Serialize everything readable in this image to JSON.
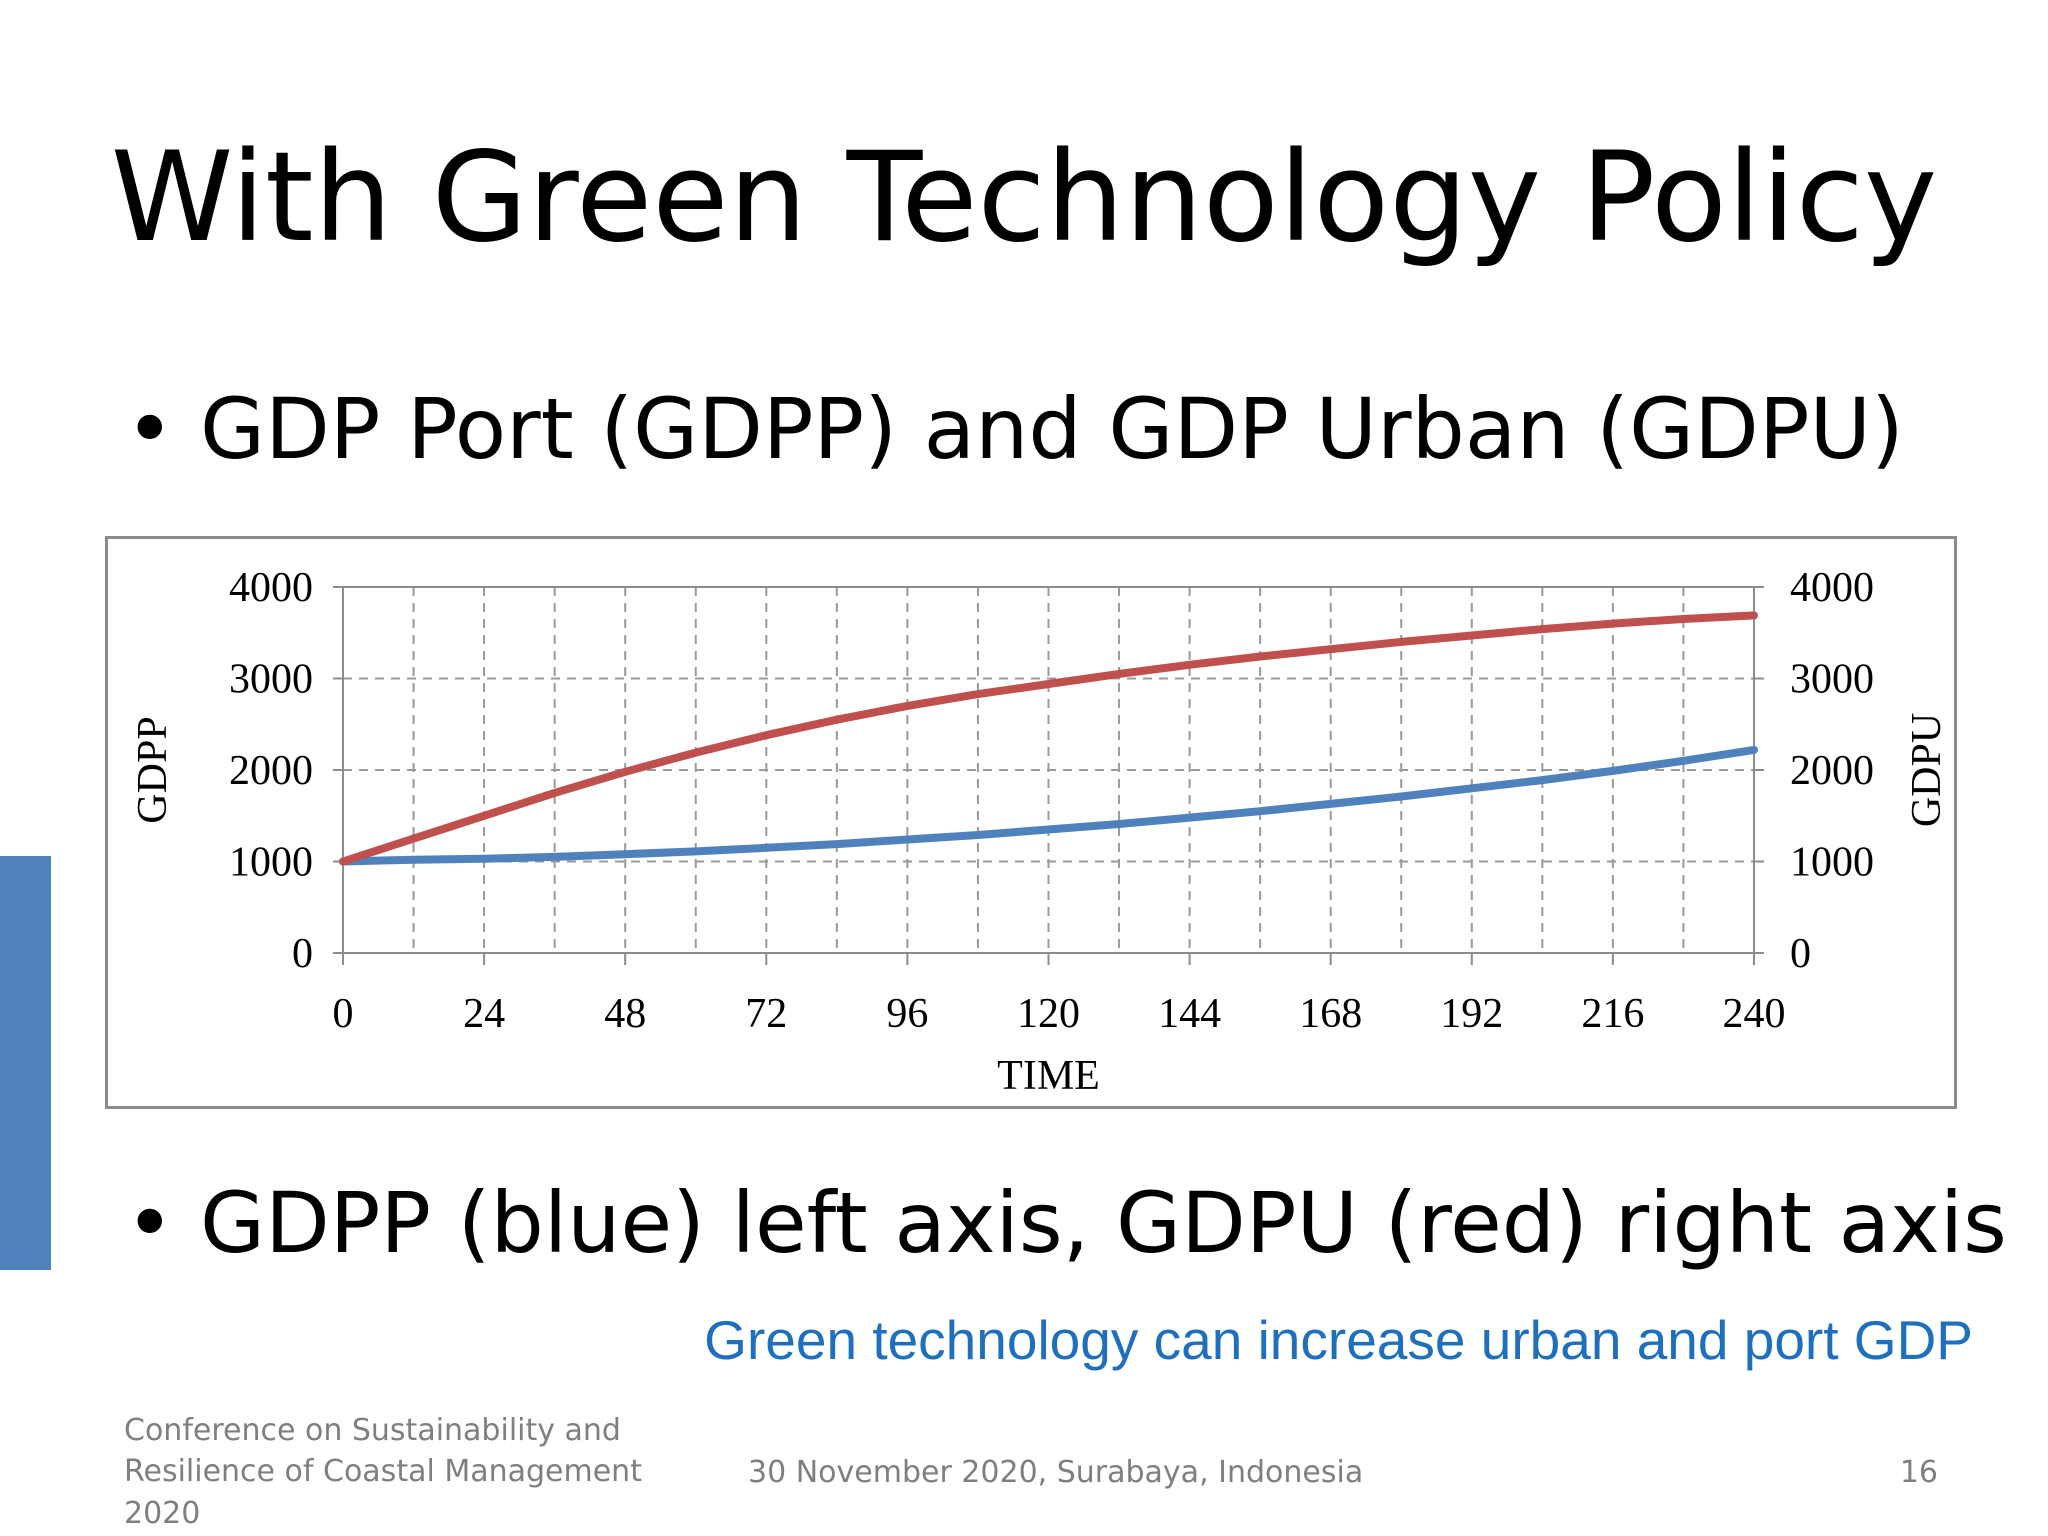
{
  "slide": {
    "title": "With Green Technology Policy",
    "bullet_symbol": "•",
    "bullets": [
      "GDP Port (GDPP) and GDP Urban (GDPU)",
      "GDPP (blue) left axis, GDPU (red) right axis"
    ],
    "callout": "Green technology can increase urban and port GDP",
    "footer": {
      "conference": "Conference on Sustainability and Resilience of Coastal Management 2020",
      "date_location": "30 November 2020, Surabaya, Indonesia",
      "page_number": "16"
    },
    "colors": {
      "accent_bar": "#4f81bd",
      "callout": "#1f6fbf"
    }
  },
  "chart_data": {
    "type": "line",
    "xlabel": "TIME",
    "ylabel_left": "GDPP",
    "ylabel_right": "GDPU",
    "xlim": [
      0,
      240
    ],
    "ylim_left": [
      0,
      4000
    ],
    "ylim_right": [
      0,
      4000
    ],
    "x_ticks": [
      "0",
      "24",
      "48",
      "72",
      "96",
      "120",
      "144",
      "168",
      "192",
      "216",
      "240"
    ],
    "y_ticks_left": [
      "0",
      "1000",
      "2000",
      "3000",
      "4000"
    ],
    "y_ticks_right": [
      "0",
      "1000",
      "2000",
      "3000",
      "4000"
    ],
    "grid": true,
    "x": [
      0,
      12,
      24,
      36,
      48,
      60,
      72,
      84,
      96,
      108,
      120,
      132,
      144,
      156,
      168,
      180,
      192,
      204,
      216,
      228,
      240
    ],
    "series": [
      {
        "name": "GDPP",
        "axis": "left",
        "color": "#4f81bd",
        "values": [
          1000,
          1020,
          1030,
          1050,
          1080,
          1110,
          1150,
          1190,
          1240,
          1290,
          1350,
          1410,
          1480,
          1550,
          1630,
          1710,
          1800,
          1890,
          1990,
          2100,
          2220
        ]
      },
      {
        "name": "GDPU",
        "axis": "right",
        "color": "#c0504d",
        "values": [
          1000,
          1250,
          1500,
          1750,
          1980,
          2190,
          2380,
          2550,
          2700,
          2830,
          2940,
          3050,
          3150,
          3240,
          3320,
          3400,
          3470,
          3540,
          3600,
          3650,
          3690
        ]
      }
    ]
  }
}
